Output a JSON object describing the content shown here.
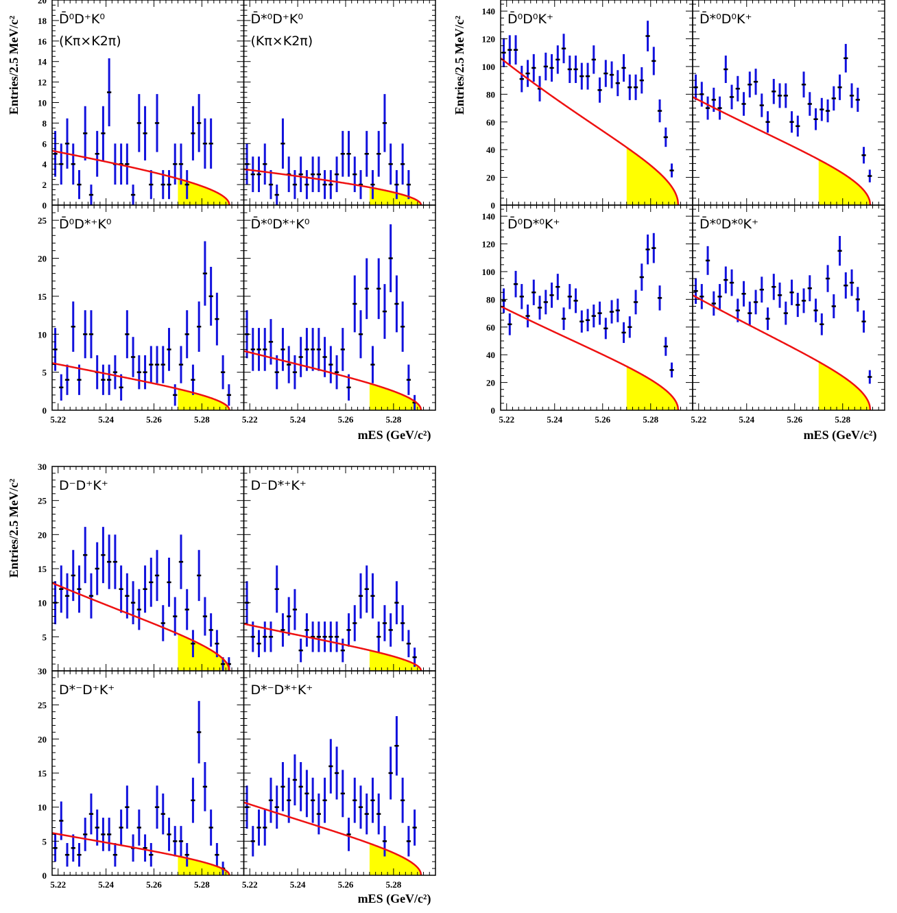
{
  "colors": {
    "fit_curve": "#ee1111",
    "signal_fill": "#ffff00",
    "error_bar": "#1111dd",
    "marker": "#000000",
    "frame": "#000000"
  },
  "groups": [
    {
      "id": "top-left",
      "ylabel": "Entries/2.5 MeV/c²",
      "xlabel": "mES (GeV/c²)",
      "xlim": [
        5.2175,
        5.2975
      ],
      "xticks": [
        "5.22",
        "5.24",
        "5.26",
        "5.28"
      ],
      "rows": [
        {
          "ylim": [
            0,
            20
          ],
          "yticks": [
            "0",
            "2",
            "4",
            "6",
            "8",
            "10",
            "12",
            "14",
            "16",
            "18",
            "20"
          ]
        },
        {
          "ylim": [
            0,
            27
          ],
          "yticks": [
            "0",
            "5",
            "10",
            "15",
            "20",
            "25"
          ]
        }
      ]
    },
    {
      "id": "top-right",
      "ylabel": "Entries/2.5 MeV/c²",
      "xlabel": "mES (GeV/c²)",
      "xlim": [
        5.2175,
        5.2975
      ],
      "xticks": [
        "5.22",
        "5.24",
        "5.26",
        "5.28"
      ],
      "rows": [
        {
          "ylim": [
            0,
            148
          ],
          "yticks": [
            "0",
            "20",
            "40",
            "60",
            "80",
            "100",
            "120",
            "140"
          ]
        },
        {
          "ylim": [
            0,
            148
          ],
          "yticks": [
            "0",
            "20",
            "40",
            "60",
            "80",
            "100",
            "120",
            "140"
          ]
        }
      ]
    },
    {
      "id": "bottom-left",
      "ylabel": "Entries/2.5 MeV/c²",
      "xlabel": "mES (GeV/c²)",
      "xlim": [
        5.2175,
        5.2975
      ],
      "xticks": [
        "5.22",
        "5.24",
        "5.26",
        "5.28"
      ],
      "rows": [
        {
          "ylim": [
            0,
            30
          ],
          "yticks": [
            "5",
            "10",
            "15",
            "20",
            "25",
            "30"
          ]
        },
        {
          "ylim": [
            0,
            30
          ],
          "yticks": [
            "0",
            "5",
            "10",
            "15",
            "20",
            "25",
            "30"
          ]
        }
      ]
    }
  ],
  "chart_data": [
    {
      "type": "scatter",
      "group": 0,
      "row": 0,
      "col": 0,
      "label": "D̄⁰D⁺K⁰",
      "sublabel": "(Kπ×K2π)",
      "x": [
        5.2188,
        5.2213,
        5.2238,
        5.2263,
        5.2288,
        5.2313,
        5.2338,
        5.2363,
        5.2388,
        5.2413,
        5.2438,
        5.2463,
        5.2488,
        5.2513,
        5.2538,
        5.2563,
        5.2588,
        5.2613,
        5.2638,
        5.2663,
        5.2688,
        5.2713,
        5.2738,
        5.2763,
        5.2788,
        5.2813,
        5.2838,
        5.2863,
        5.2888,
        5.2913
      ],
      "y": [
        5,
        4,
        6,
        4,
        2,
        7,
        1,
        5,
        7,
        11,
        4,
        4,
        4,
        1,
        8,
        7,
        2,
        8,
        2,
        2,
        4,
        4,
        2,
        7,
        8,
        6,
        6,
        0,
        0,
        0
      ],
      "fit_norm": 5.3,
      "fit_c": 6,
      "endpoint": 5.2915,
      "signal_from": 5.27
    },
    {
      "type": "scatter",
      "group": 0,
      "row": 0,
      "col": 1,
      "label": "D̄*⁰D⁺K⁰",
      "sublabel": "(Kπ×K2π)",
      "x": [
        5.2188,
        5.2213,
        5.2238,
        5.2263,
        5.2288,
        5.2313,
        5.2338,
        5.2363,
        5.2388,
        5.2413,
        5.2438,
        5.2463,
        5.2488,
        5.2513,
        5.2538,
        5.2563,
        5.2588,
        5.2613,
        5.2638,
        5.2663,
        5.2688,
        5.2713,
        5.2738,
        5.2763,
        5.2788,
        5.2813,
        5.2838,
        5.2863,
        5.2888,
        5.2913
      ],
      "y": [
        4,
        3,
        3,
        4,
        2,
        1,
        6,
        3,
        2,
        3,
        2,
        3,
        3,
        2,
        2,
        3,
        5,
        5,
        3,
        2,
        5,
        2,
        5,
        8,
        4,
        2,
        4,
        2,
        0,
        0
      ],
      "fit_norm": 3.5,
      "fit_c": 5,
      "endpoint": 5.2915,
      "signal_from": 5.27
    },
    {
      "type": "scatter",
      "group": 0,
      "row": 1,
      "col": 0,
      "label": "D̄⁰D*⁺K⁰",
      "sublabel": "",
      "x": [
        5.2188,
        5.2213,
        5.2238,
        5.2263,
        5.2288,
        5.2313,
        5.2338,
        5.2363,
        5.2388,
        5.2413,
        5.2438,
        5.2463,
        5.2488,
        5.2513,
        5.2538,
        5.2563,
        5.2588,
        5.2613,
        5.2638,
        5.2663,
        5.2688,
        5.2713,
        5.2738,
        5.2763,
        5.2788,
        5.2813,
        5.2838,
        5.2863,
        5.2888,
        5.2913
      ],
      "y": [
        8,
        3,
        4,
        11,
        4,
        10,
        10,
        5,
        4,
        4,
        5,
        3,
        10,
        7,
        5,
        5,
        6,
        6,
        6,
        8,
        2,
        6,
        10,
        4,
        11,
        18,
        15,
        12,
        5,
        2
      ],
      "fit_norm": 6.2,
      "fit_c": 10,
      "endpoint": 5.2915,
      "signal_from": 5.27
    },
    {
      "type": "scatter",
      "group": 0,
      "row": 1,
      "col": 1,
      "label": "D̄*⁰D*⁺K⁰",
      "sublabel": "",
      "x": [
        5.2188,
        5.2213,
        5.2238,
        5.2263,
        5.2288,
        5.2313,
        5.2338,
        5.2363,
        5.2388,
        5.2413,
        5.2438,
        5.2463,
        5.2488,
        5.2513,
        5.2538,
        5.2563,
        5.2588,
        5.2613,
        5.2638,
        5.2663,
        5.2688,
        5.2713,
        5.2738,
        5.2763,
        5.2788,
        5.2813,
        5.2838,
        5.2863,
        5.2888,
        5.2913
      ],
      "y": [
        10,
        8,
        8,
        8,
        9,
        5,
        8,
        6,
        5,
        7,
        8,
        8,
        8,
        7,
        6,
        5,
        8,
        3,
        14,
        10,
        16,
        6,
        16,
        13,
        20,
        14,
        11,
        4,
        1,
        0
      ],
      "fit_norm": 7.8,
      "fit_c": 10,
      "endpoint": 5.2915,
      "signal_from": 5.27
    },
    {
      "type": "scatter",
      "group": 1,
      "row": 0,
      "col": 0,
      "label": "D̄⁰D⁰K⁺",
      "sublabel": "",
      "x": [
        5.2188,
        5.2213,
        5.2238,
        5.2263,
        5.2288,
        5.2313,
        5.2338,
        5.2363,
        5.2388,
        5.2413,
        5.2438,
        5.2463,
        5.2488,
        5.2513,
        5.2538,
        5.2563,
        5.2588,
        5.2613,
        5.2638,
        5.2663,
        5.2688,
        5.2713,
        5.2738,
        5.2763,
        5.2788,
        5.2813,
        5.2838,
        5.2863,
        5.2888,
        5.2913
      ],
      "y": [
        110,
        112,
        112,
        91,
        95,
        99,
        84,
        100,
        99,
        105,
        113,
        98,
        98,
        93,
        93,
        105,
        83,
        95,
        94,
        88,
        99,
        85,
        85,
        90,
        122,
        104,
        68,
        49,
        25,
        0
      ],
      "fit_norm": 106,
      "fit_c": 18,
      "endpoint": 5.2915,
      "signal_from": 5.27
    },
    {
      "type": "scatter",
      "group": 1,
      "row": 0,
      "col": 1,
      "label": "D̄*⁰D⁰K⁺",
      "sublabel": "",
      "x": [
        5.2188,
        5.2213,
        5.2238,
        5.2263,
        5.2288,
        5.2313,
        5.2338,
        5.2363,
        5.2388,
        5.2413,
        5.2438,
        5.2463,
        5.2488,
        5.2513,
        5.2538,
        5.2563,
        5.2588,
        5.2613,
        5.2638,
        5.2663,
        5.2688,
        5.2713,
        5.2738,
        5.2763,
        5.2788,
        5.2813,
        5.2838,
        5.2863,
        5.2888,
        5.2913
      ],
      "y": [
        85,
        80,
        70,
        76,
        70,
        98,
        78,
        84,
        73,
        87,
        89,
        72,
        60,
        82,
        79,
        79,
        60,
        57,
        87,
        73,
        62,
        69,
        68,
        77,
        85,
        106,
        79,
        76,
        36,
        21
      ],
      "fit_norm": 78,
      "fit_c": 14,
      "endpoint": 5.2915,
      "signal_from": 5.27
    },
    {
      "type": "scatter",
      "group": 1,
      "row": 1,
      "col": 0,
      "label": "D̄⁰D*⁰K⁺",
      "sublabel": "",
      "x": [
        5.2188,
        5.2213,
        5.2238,
        5.2263,
        5.2288,
        5.2313,
        5.2338,
        5.2363,
        5.2388,
        5.2413,
        5.2438,
        5.2463,
        5.2488,
        5.2513,
        5.2538,
        5.2563,
        5.2588,
        5.2613,
        5.2638,
        5.2663,
        5.2688,
        5.2713,
        5.2738,
        5.2763,
        5.2788,
        5.2813,
        5.2838,
        5.2863,
        5.2888,
        5.2913
      ],
      "y": [
        79,
        62,
        91,
        82,
        68,
        85,
        74,
        78,
        83,
        89,
        66,
        82,
        79,
        64,
        65,
        68,
        70,
        59,
        71,
        72,
        56,
        60,
        78,
        96,
        116,
        117,
        81,
        46,
        29,
        0
      ],
      "fit_norm": 75,
      "fit_c": 14,
      "endpoint": 5.2915,
      "signal_from": 5.27
    },
    {
      "type": "scatter",
      "group": 1,
      "row": 1,
      "col": 1,
      "label": "D̄*⁰D*⁰K⁺",
      "sublabel": "",
      "x": [
        5.2188,
        5.2213,
        5.2238,
        5.2263,
        5.2288,
        5.2313,
        5.2338,
        5.2363,
        5.2388,
        5.2413,
        5.2438,
        5.2463,
        5.2488,
        5.2513,
        5.2538,
        5.2563,
        5.2588,
        5.2613,
        5.2638,
        5.2663,
        5.2688,
        5.2713,
        5.2738,
        5.2763,
        5.2788,
        5.2813,
        5.2838,
        5.2863,
        5.2888,
        5.2913
      ],
      "y": [
        86,
        82,
        108,
        77,
        82,
        94,
        92,
        72,
        84,
        70,
        78,
        87,
        66,
        89,
        83,
        70,
        85,
        76,
        79,
        88,
        72,
        62,
        95,
        75,
        115,
        90,
        92,
        80,
        64,
        24
      ],
      "fit_norm": 83,
      "fit_c": 14,
      "endpoint": 5.2915,
      "signal_from": 5.27
    },
    {
      "type": "scatter",
      "group": 2,
      "row": 0,
      "col": 0,
      "label": "D⁻D⁺K⁺",
      "sublabel": "",
      "x": [
        5.2188,
        5.2213,
        5.2238,
        5.2263,
        5.2288,
        5.2313,
        5.2338,
        5.2363,
        5.2388,
        5.2413,
        5.2438,
        5.2463,
        5.2488,
        5.2513,
        5.2538,
        5.2563,
        5.2588,
        5.2613,
        5.2638,
        5.2663,
        5.2688,
        5.2713,
        5.2738,
        5.2763,
        5.2788,
        5.2813,
        5.2838,
        5.2863,
        5.2888,
        5.2913
      ],
      "y": [
        10,
        12,
        11,
        14,
        12,
        17,
        11,
        15,
        17,
        16,
        16,
        12,
        11,
        10,
        9,
        12,
        13,
        14,
        7,
        13,
        8,
        16,
        9,
        4,
        14,
        8,
        6,
        4,
        1,
        1
      ],
      "fit_norm": 12.9,
      "fit_c": 14,
      "endpoint": 5.2915,
      "signal_from": 5.27
    },
    {
      "type": "scatter",
      "group": 2,
      "row": 0,
      "col": 1,
      "label": "D⁻D*⁺K⁺",
      "sublabel": "",
      "x": [
        5.2188,
        5.2213,
        5.2238,
        5.2263,
        5.2288,
        5.2313,
        5.2338,
        5.2363,
        5.2388,
        5.2413,
        5.2438,
        5.2463,
        5.2488,
        5.2513,
        5.2538,
        5.2563,
        5.2588,
        5.2613,
        5.2638,
        5.2663,
        5.2688,
        5.2713,
        5.2738,
        5.2763,
        5.2788,
        5.2813,
        5.2838,
        5.2863,
        5.2888,
        5.2913
      ],
      "y": [
        10,
        5,
        4,
        5,
        5,
        12,
        6,
        8,
        9,
        3,
        6,
        5,
        5,
        5,
        5,
        5,
        3,
        6,
        7,
        11,
        12,
        11,
        5,
        7,
        6,
        10,
        7,
        4,
        2,
        0
      ],
      "fit_norm": 6.9,
      "fit_c": 12,
      "endpoint": 5.2915,
      "signal_from": 5.27
    },
    {
      "type": "scatter",
      "group": 2,
      "row": 1,
      "col": 0,
      "label": "D*⁻D⁺K⁺",
      "sublabel": "",
      "x": [
        5.2188,
        5.2213,
        5.2238,
        5.2263,
        5.2288,
        5.2313,
        5.2338,
        5.2363,
        5.2388,
        5.2413,
        5.2438,
        5.2463,
        5.2488,
        5.2513,
        5.2538,
        5.2563,
        5.2588,
        5.2613,
        5.2638,
        5.2663,
        5.2688,
        5.2713,
        5.2738,
        5.2763,
        5.2788,
        5.2813,
        5.2838,
        5.2863,
        5.2888,
        5.2913
      ],
      "y": [
        4,
        8,
        3,
        4,
        3,
        6,
        9,
        7,
        6,
        6,
        3,
        7,
        10,
        4,
        7,
        4,
        3,
        10,
        9,
        6,
        5,
        5,
        3,
        11,
        21,
        13,
        7,
        3,
        1,
        0
      ],
      "fit_norm": 6.2,
      "fit_c": 10,
      "endpoint": 5.2915,
      "signal_from": 5.27
    },
    {
      "type": "scatter",
      "group": 2,
      "row": 1,
      "col": 1,
      "label": "D*⁻D*⁺K⁺",
      "sublabel": "",
      "x": [
        5.2188,
        5.2213,
        5.2238,
        5.2263,
        5.2288,
        5.2313,
        5.2338,
        5.2363,
        5.2388,
        5.2413,
        5.2438,
        5.2463,
        5.2488,
        5.2513,
        5.2538,
        5.2563,
        5.2588,
        5.2613,
        5.2638,
        5.2663,
        5.2688,
        5.2713,
        5.2738,
        5.2763,
        5.2788,
        5.2813,
        5.2838,
        5.2863,
        5.2888,
        5.2913
      ],
      "y": [
        10,
        5,
        7,
        7,
        11,
        10,
        13,
        11,
        14,
        13,
        12,
        11,
        9,
        11,
        16,
        15,
        12,
        6,
        11,
        10,
        9,
        11,
        9,
        5,
        15,
        19,
        11,
        5,
        7,
        0
      ],
      "fit_norm": 10.7,
      "fit_c": 12,
      "endpoint": 5.2915,
      "signal_from": 5.27
    }
  ]
}
